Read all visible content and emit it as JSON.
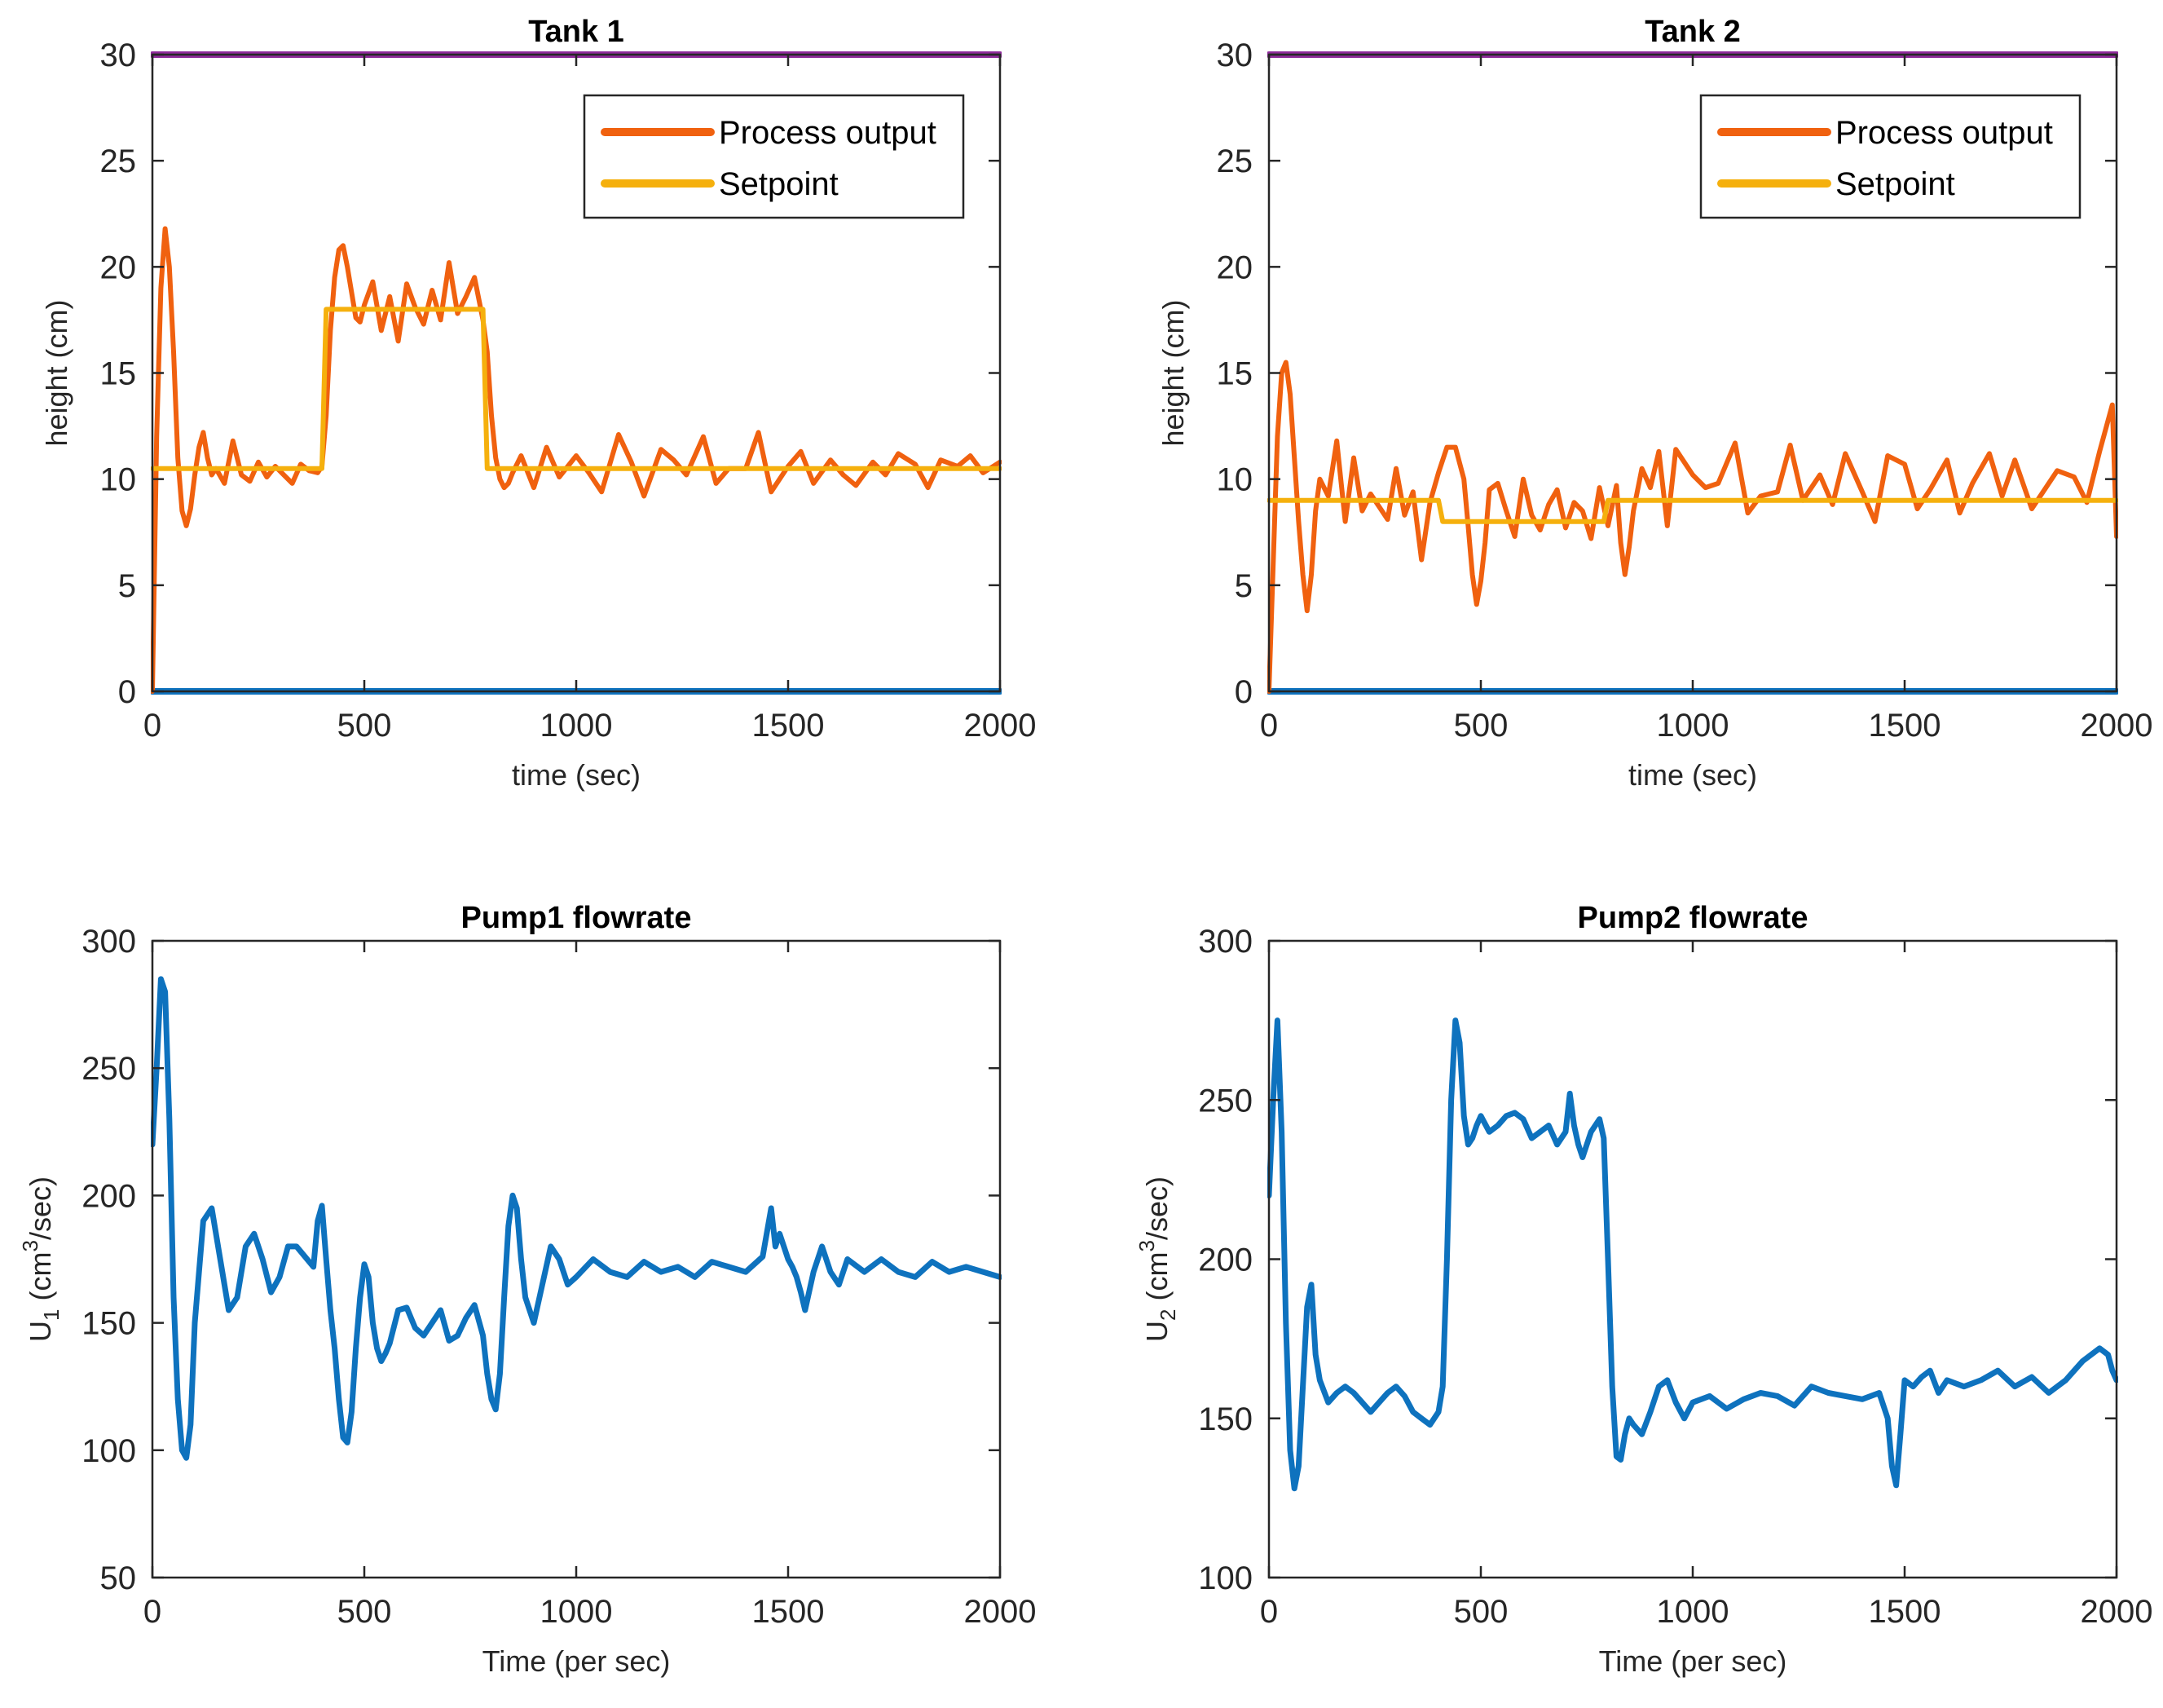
{
  "chart_data": [
    {
      "type": "line",
      "title": "Tank 1",
      "xlabel": "time (sec)",
      "ylabel": "height (cm)",
      "xlim": [
        0,
        2000
      ],
      "ylim": [
        0,
        30
      ],
      "xticks": [
        0,
        500,
        1000,
        1500,
        2000
      ],
      "yticks": [
        0,
        5,
        10,
        15,
        20,
        25,
        30
      ],
      "legend": {
        "location": "top-right",
        "entries": [
          "Process output",
          "Setpoint"
        ]
      },
      "colors": {
        "process": "#F0610F",
        "setpoint": "#F5B00D",
        "upper": "#8E2A9A",
        "lower": "#0E72BE"
      },
      "series": [
        {
          "name": "Process output",
          "role": "process",
          "x": [
            0,
            10,
            20,
            30,
            40,
            50,
            60,
            70,
            80,
            90,
            100,
            110,
            120,
            130,
            140,
            150,
            170,
            190,
            210,
            230,
            250,
            270,
            290,
            310,
            330,
            350,
            370,
            390,
            400,
            410,
            420,
            430,
            440,
            450,
            460,
            470,
            480,
            490,
            500,
            520,
            540,
            560,
            580,
            600,
            620,
            640,
            660,
            680,
            700,
            720,
            740,
            760,
            780,
            790,
            800,
            810,
            820,
            830,
            840,
            850,
            870,
            900,
            930,
            960,
            1000,
            1030,
            1060,
            1100,
            1130,
            1160,
            1200,
            1230,
            1260,
            1300,
            1330,
            1360,
            1400,
            1430,
            1460,
            1500,
            1530,
            1560,
            1600,
            1630,
            1660,
            1700,
            1730,
            1760,
            1800,
            1830,
            1860,
            1900,
            1930,
            1960,
            2000
          ],
          "values": [
            0,
            12,
            19,
            21.8,
            20,
            16,
            11,
            8.5,
            7.8,
            8.6,
            10.2,
            11.5,
            12.2,
            11,
            10.2,
            10.5,
            9.8,
            11.8,
            10.2,
            9.9,
            10.8,
            10.1,
            10.6,
            10.2,
            9.8,
            10.7,
            10.4,
            10.3,
            10.6,
            13,
            17,
            19.5,
            20.8,
            21,
            20,
            18.8,
            17.6,
            17.4,
            18.2,
            19.3,
            17,
            18.6,
            16.5,
            19.2,
            18.1,
            17.3,
            18.9,
            17.5,
            20.2,
            17.8,
            18.6,
            19.5,
            17.5,
            16,
            13,
            11,
            10,
            9.6,
            9.8,
            10.3,
            11.1,
            9.6,
            11.5,
            10.1,
            11.1,
            10.3,
            9.4,
            12.1,
            10.8,
            9.2,
            11.4,
            10.9,
            10.2,
            12,
            9.8,
            10.5,
            10.5,
            12.2,
            9.4,
            10.6,
            11.3,
            9.8,
            10.9,
            10.2,
            9.7,
            10.8,
            10.2,
            11.2,
            10.7,
            9.6,
            10.9,
            10.6,
            11.1,
            10.3,
            10.8
          ]
        },
        {
          "name": "Setpoint",
          "role": "setpoint",
          "x": [
            0,
            400,
            410,
            780,
            790,
            2000
          ],
          "values": [
            10.5,
            10.5,
            18,
            18,
            10.5,
            10.5
          ]
        },
        {
          "role": "upper",
          "x": [
            0,
            2000
          ],
          "values": [
            30,
            30
          ]
        },
        {
          "role": "lower",
          "x": [
            0,
            2000
          ],
          "values": [
            0,
            0
          ]
        }
      ]
    },
    {
      "type": "line",
      "title": "Tank 2",
      "xlabel": "time (sec)",
      "ylabel": "height (cm)",
      "xlim": [
        0,
        2000
      ],
      "ylim": [
        0,
        30
      ],
      "xticks": [
        0,
        500,
        1000,
        1500,
        2000
      ],
      "yticks": [
        0,
        5,
        10,
        15,
        20,
        25,
        30
      ],
      "legend": {
        "location": "top-right",
        "entries": [
          "Process output",
          "Setpoint"
        ]
      },
      "colors": {
        "process": "#F0610F",
        "setpoint": "#F5B00D",
        "upper": "#8E2A9A",
        "lower": "#0E72BE"
      },
      "series": [
        {
          "name": "Process output",
          "role": "process",
          "x": [
            0,
            10,
            20,
            30,
            40,
            50,
            60,
            70,
            80,
            90,
            100,
            110,
            120,
            140,
            160,
            180,
            200,
            220,
            240,
            260,
            280,
            300,
            320,
            340,
            360,
            380,
            400,
            420,
            440,
            460,
            470,
            480,
            490,
            500,
            510,
            520,
            540,
            560,
            580,
            600,
            620,
            640,
            660,
            680,
            700,
            720,
            740,
            760,
            780,
            800,
            820,
            830,
            840,
            850,
            860,
            880,
            900,
            920,
            940,
            960,
            1000,
            1030,
            1060,
            1100,
            1130,
            1160,
            1200,
            1230,
            1260,
            1300,
            1330,
            1360,
            1400,
            1430,
            1460,
            1500,
            1530,
            1560,
            1600,
            1630,
            1660,
            1700,
            1730,
            1760,
            1800,
            1830,
            1860,
            1900,
            1930,
            1960,
            1990,
            2000
          ],
          "values": [
            0,
            6,
            12,
            15,
            15.5,
            14,
            11,
            8,
            5.5,
            3.8,
            5.5,
            8.5,
            10,
            9.2,
            11.8,
            8,
            11,
            8.5,
            9.3,
            8.7,
            8.1,
            10.5,
            8.3,
            9.4,
            6.2,
            8.9,
            10.3,
            11.5,
            11.5,
            10,
            7.8,
            5.5,
            4.1,
            5.2,
            7,
            9.5,
            9.8,
            8.5,
            7.3,
            10,
            8.3,
            7.6,
            8.8,
            9.5,
            7.7,
            8.9,
            8.5,
            7.2,
            9.6,
            7.8,
            9.7,
            7,
            5.5,
            6.8,
            8.5,
            10.5,
            9.6,
            11.3,
            7.8,
            11.4,
            10.2,
            9.6,
            9.8,
            11.7,
            8.4,
            9.2,
            9.4,
            11.6,
            9,
            10.2,
            8.8,
            11.2,
            9.4,
            8,
            11.1,
            10.7,
            8.6,
            9.5,
            10.9,
            8.4,
            9.8,
            11.2,
            9.2,
            10.9,
            8.6,
            9.5,
            10.4,
            10.1,
            8.9,
            11.3,
            13.5,
            7.3
          ]
        },
        {
          "name": "Setpoint",
          "role": "setpoint",
          "x": [
            0,
            400,
            410,
            790,
            800,
            2000
          ],
          "values": [
            9,
            9,
            8,
            8,
            9,
            9
          ]
        },
        {
          "role": "upper",
          "x": [
            0,
            2000
          ],
          "values": [
            30,
            30
          ]
        },
        {
          "role": "lower",
          "x": [
            0,
            2000
          ],
          "values": [
            0,
            0
          ]
        }
      ]
    },
    {
      "type": "line",
      "title": "Pump1 flowrate",
      "xlabel": "Time (per sec)",
      "ylabel": "U1 (cm3/sec)",
      "ylabel_parts": {
        "pre": "U",
        "sub": "1",
        "mid": " (cm",
        "sup": "3",
        "post": "/sec)"
      },
      "xlim": [
        0,
        2000
      ],
      "ylim": [
        50,
        300
      ],
      "xticks": [
        0,
        500,
        1000,
        1500,
        2000
      ],
      "yticks": [
        50,
        100,
        150,
        200,
        250,
        300
      ],
      "colors": {
        "line": "#0E72BE"
      },
      "series": [
        {
          "role": "line",
          "x": [
            0,
            10,
            20,
            30,
            40,
            50,
            60,
            70,
            80,
            90,
            100,
            120,
            140,
            160,
            180,
            200,
            220,
            240,
            260,
            280,
            300,
            320,
            340,
            360,
            380,
            390,
            400,
            410,
            420,
            430,
            440,
            450,
            460,
            470,
            480,
            490,
            500,
            510,
            520,
            530,
            540,
            550,
            560,
            580,
            600,
            620,
            640,
            660,
            680,
            700,
            720,
            740,
            760,
            780,
            790,
            800,
            810,
            820,
            830,
            840,
            850,
            860,
            870,
            880,
            900,
            920,
            940,
            960,
            980,
            1000,
            1040,
            1080,
            1120,
            1160,
            1200,
            1240,
            1280,
            1320,
            1360,
            1400,
            1440,
            1460,
            1470,
            1480,
            1490,
            1500,
            1510,
            1520,
            1530,
            1540,
            1560,
            1580,
            1600,
            1620,
            1640,
            1680,
            1720,
            1760,
            1800,
            1840,
            1880,
            1920,
            1960,
            2000
          ],
          "values": [
            220,
            250,
            285,
            280,
            230,
            160,
            120,
            100,
            97,
            110,
            150,
            190,
            195,
            175,
            155,
            160,
            180,
            185,
            175,
            162,
            168,
            180,
            180,
            176,
            172,
            190,
            196,
            175,
            155,
            140,
            120,
            105,
            103,
            115,
            140,
            160,
            173,
            168,
            150,
            140,
            135,
            138,
            142,
            155,
            156,
            148,
            145,
            150,
            155,
            143,
            145,
            152,
            157,
            145,
            130,
            120,
            116,
            130,
            160,
            188,
            200,
            195,
            175,
            160,
            150,
            165,
            180,
            175,
            165,
            168,
            175,
            170,
            168,
            174,
            170,
            172,
            168,
            174,
            172,
            170,
            176,
            195,
            180,
            185,
            180,
            175,
            172,
            168,
            162,
            155,
            170,
            180,
            170,
            165,
            175,
            170,
            175,
            170,
            168,
            174,
            170,
            172,
            170,
            168
          ]
        }
      ]
    },
    {
      "type": "line",
      "title": "Pump2 flowrate",
      "xlabel": "Time (per sec)",
      "ylabel": "U2 (cm3/sec)",
      "ylabel_parts": {
        "pre": "U",
        "sub": "2",
        "mid": " (cm",
        "sup": "3",
        "post": "/sec)"
      },
      "xlim": [
        0,
        2000
      ],
      "ylim": [
        100,
        300
      ],
      "xticks": [
        0,
        500,
        1000,
        1500,
        2000
      ],
      "yticks": [
        100,
        150,
        200,
        250,
        300
      ],
      "colors": {
        "line": "#0E72BE"
      },
      "series": [
        {
          "role": "line",
          "x": [
            0,
            10,
            20,
            30,
            40,
            50,
            60,
            70,
            80,
            90,
            100,
            110,
            120,
            140,
            160,
            180,
            200,
            220,
            240,
            260,
            280,
            300,
            320,
            340,
            360,
            380,
            400,
            410,
            420,
            430,
            440,
            450,
            460,
            470,
            480,
            490,
            500,
            520,
            540,
            560,
            580,
            600,
            620,
            640,
            660,
            680,
            700,
            710,
            720,
            730,
            740,
            760,
            780,
            790,
            800,
            810,
            820,
            830,
            840,
            850,
            860,
            880,
            900,
            920,
            940,
            960,
            980,
            1000,
            1040,
            1080,
            1120,
            1160,
            1200,
            1240,
            1280,
            1320,
            1360,
            1400,
            1440,
            1460,
            1470,
            1480,
            1490,
            1500,
            1520,
            1540,
            1560,
            1580,
            1600,
            1640,
            1680,
            1720,
            1760,
            1800,
            1840,
            1880,
            1920,
            1960,
            1980,
            1990,
            2000
          ],
          "values": [
            220,
            250,
            275,
            240,
            180,
            140,
            128,
            135,
            160,
            185,
            192,
            170,
            162,
            155,
            158,
            160,
            158,
            155,
            152,
            155,
            158,
            160,
            157,
            152,
            150,
            148,
            152,
            160,
            200,
            250,
            275,
            268,
            245,
            236,
            238,
            242,
            245,
            240,
            242,
            245,
            246,
            244,
            238,
            240,
            242,
            236,
            240,
            252,
            242,
            236,
            232,
            240,
            244,
            238,
            200,
            160,
            138,
            137,
            145,
            150,
            148,
            145,
            152,
            160,
            162,
            155,
            150,
            155,
            157,
            153,
            156,
            158,
            157,
            154,
            160,
            158,
            157,
            156,
            158,
            150,
            135,
            129,
            145,
            162,
            160,
            163,
            165,
            158,
            162,
            160,
            162,
            165,
            160,
            163,
            158,
            162,
            168,
            172,
            170,
            165,
            162
          ]
        }
      ]
    }
  ]
}
